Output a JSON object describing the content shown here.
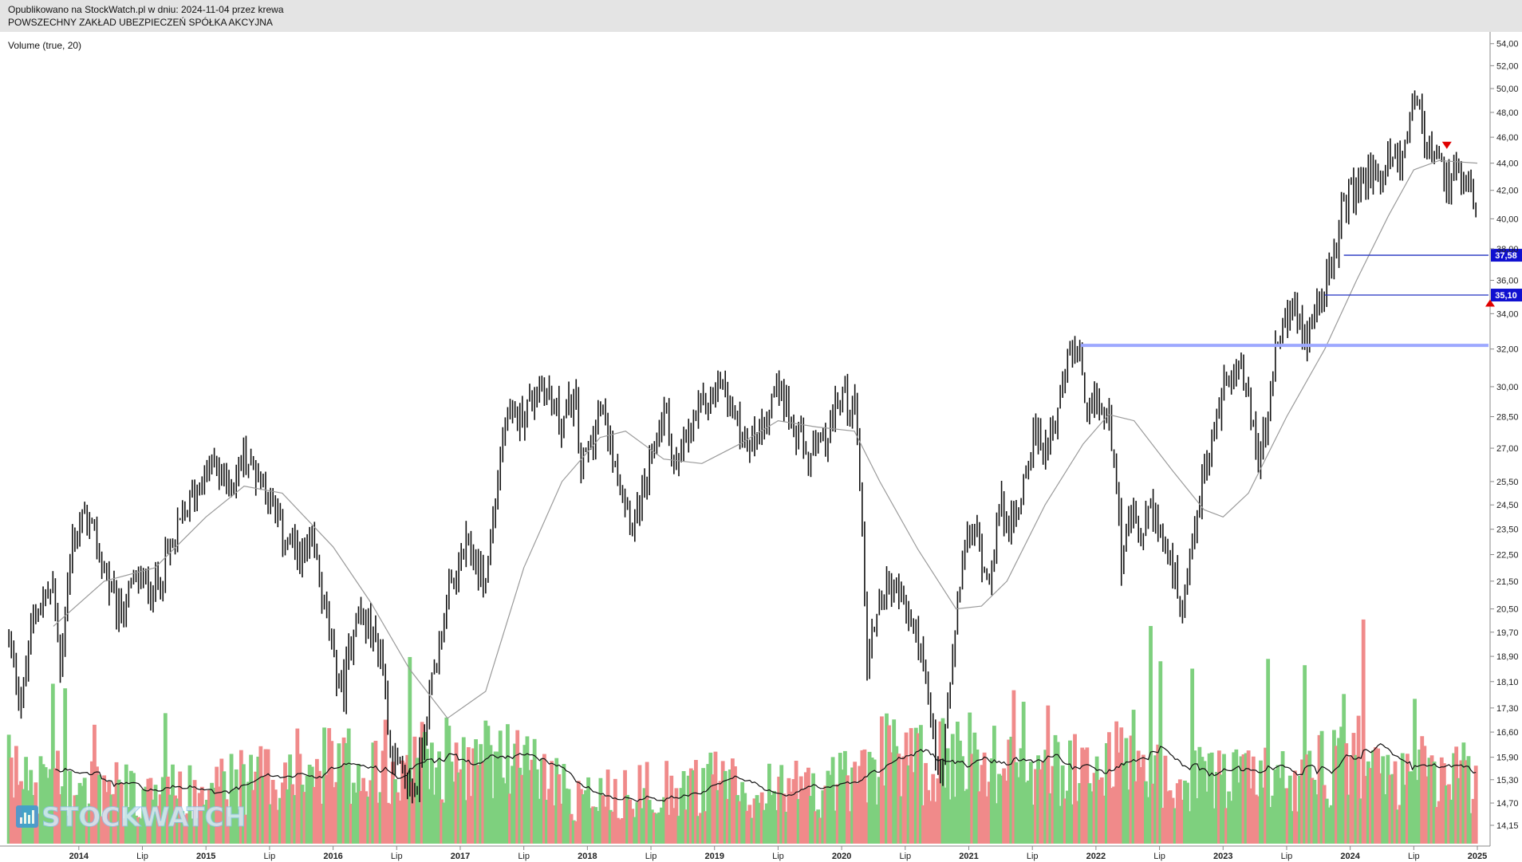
{
  "header": {
    "published": "Opublikowano na StockWatch.pl w dniu: 2024-11-04 przez krewa",
    "company": "POWSZECHNY ZAKŁAD UBEZPIECZEŃ SPÓŁKA AKCYJNA"
  },
  "indicator_label": "Volume (true, 20)",
  "watermark": "STOCKWATCH",
  "chart_data": {
    "type": "candlestick",
    "title": "POWSZECHNY ZAKŁAD UBEZPIECZEŃ SPÓŁKA AKCYJNA",
    "x_range": [
      "2013-06",
      "2024-11"
    ],
    "x_ticks": [
      {
        "t": 2014.0,
        "label": "2014"
      },
      {
        "t": 2014.5,
        "label": "Lip"
      },
      {
        "t": 2015.0,
        "label": "2015"
      },
      {
        "t": 2015.5,
        "label": "Lip"
      },
      {
        "t": 2016.0,
        "label": "2016"
      },
      {
        "t": 2016.5,
        "label": "Lip"
      },
      {
        "t": 2017.0,
        "label": "2017"
      },
      {
        "t": 2017.5,
        "label": "Lip"
      },
      {
        "t": 2018.0,
        "label": "2018"
      },
      {
        "t": 2018.5,
        "label": "Lip"
      },
      {
        "t": 2019.0,
        "label": "2019"
      },
      {
        "t": 2019.5,
        "label": "Lip"
      },
      {
        "t": 2020.0,
        "label": "2020"
      },
      {
        "t": 2020.5,
        "label": "Lip"
      },
      {
        "t": 2021.0,
        "label": "2021"
      },
      {
        "t": 2021.5,
        "label": "Lip"
      },
      {
        "t": 2022.0,
        "label": "2022"
      },
      {
        "t": 2022.5,
        "label": "Lip"
      },
      {
        "t": 2023.0,
        "label": "2023"
      },
      {
        "t": 2023.5,
        "label": "Lip"
      },
      {
        "t": 2024.0,
        "label": "2024"
      },
      {
        "t": 2024.5,
        "label": "Lip"
      },
      {
        "t": 2025.0,
        "label": "2025"
      }
    ],
    "y_ticks": [
      "54,00",
      "52,00",
      "50,00",
      "48,00",
      "46,00",
      "44,00",
      "42,00",
      "40,00",
      "38,00",
      "36,00",
      "34,00",
      "32,00",
      "30,00",
      "28,50",
      "27,00",
      "25,50",
      "24,50",
      "23,50",
      "22,50",
      "21,50",
      "20,50",
      "19,70",
      "18,90",
      "18,10",
      "17,30",
      "16,60",
      "15,90",
      "15,30",
      "14,70",
      "14,15"
    ],
    "y_scale": "log",
    "y_range": [
      13.9,
      54.5
    ],
    "price_path": [
      [
        2013.45,
        19.5
      ],
      [
        2013.55,
        17.4
      ],
      [
        2013.65,
        20.5
      ],
      [
        2013.8,
        21.2
      ],
      [
        2013.85,
        18.5
      ],
      [
        2013.95,
        23.0
      ],
      [
        2014.05,
        24.0
      ],
      [
        2014.2,
        22.0
      ],
      [
        2014.3,
        20.2
      ],
      [
        2014.45,
        21.5
      ],
      [
        2014.6,
        21.3
      ],
      [
        2014.75,
        23.0
      ],
      [
        2014.9,
        25.0
      ],
      [
        2015.05,
        26.2
      ],
      [
        2015.2,
        25.3
      ],
      [
        2015.3,
        26.6
      ],
      [
        2015.45,
        25.6
      ],
      [
        2015.6,
        23.3
      ],
      [
        2015.75,
        22.3
      ],
      [
        2015.85,
        22.8
      ],
      [
        2016.0,
        18.7
      ],
      [
        2016.08,
        17.8
      ],
      [
        2016.18,
        20.5
      ],
      [
        2016.28,
        19.8
      ],
      [
        2016.38,
        19.0
      ],
      [
        2016.45,
        16.2
      ],
      [
        2016.55,
        15.2
      ],
      [
        2016.65,
        15.0
      ],
      [
        2016.72,
        16.8
      ],
      [
        2016.8,
        18.6
      ],
      [
        2016.9,
        20.8
      ],
      [
        2017.05,
        22.8
      ],
      [
        2017.2,
        21.5
      ],
      [
        2017.35,
        28.0
      ],
      [
        2017.5,
        28.8
      ],
      [
        2017.65,
        30.2
      ],
      [
        2017.8,
        28.2
      ],
      [
        2017.9,
        29.5
      ],
      [
        2017.95,
        26.0
      ],
      [
        2018.1,
        28.8
      ],
      [
        2018.2,
        27.0
      ],
      [
        2018.35,
        23.8
      ],
      [
        2018.45,
        25.0
      ],
      [
        2018.6,
        29.0
      ],
      [
        2018.7,
        26.0
      ],
      [
        2018.85,
        28.5
      ],
      [
        2019.05,
        30.2
      ],
      [
        2019.2,
        27.8
      ],
      [
        2019.3,
        27.3
      ],
      [
        2019.4,
        28.5
      ],
      [
        2019.52,
        30.5
      ],
      [
        2019.6,
        28.0
      ],
      [
        2019.75,
        26.5
      ],
      [
        2019.88,
        27.3
      ],
      [
        2020.0,
        29.8
      ],
      [
        2020.12,
        28.5
      ],
      [
        2020.15,
        24.8
      ],
      [
        2020.2,
        18.6
      ],
      [
        2020.3,
        21.0
      ],
      [
        2020.4,
        21.5
      ],
      [
        2020.5,
        20.5
      ],
      [
        2020.6,
        19.5
      ],
      [
        2020.72,
        16.4
      ],
      [
        2020.78,
        15.0
      ],
      [
        2020.82,
        16.8
      ],
      [
        2020.87,
        18.5
      ],
      [
        2020.95,
        22.5
      ],
      [
        2021.05,
        23.5
      ],
      [
        2021.15,
        21.5
      ],
      [
        2021.25,
        24.5
      ],
      [
        2021.35,
        23.5
      ],
      [
        2021.5,
        27.5
      ],
      [
        2021.6,
        27.0
      ],
      [
        2021.72,
        29.5
      ],
      [
        2021.82,
        32.3
      ],
      [
        2021.88,
        31.0
      ],
      [
        2021.92,
        28.0
      ],
      [
        2022.0,
        29.5
      ],
      [
        2022.08,
        28.5
      ],
      [
        2022.15,
        27.0
      ],
      [
        2022.2,
        22.3
      ],
      [
        2022.28,
        24.0
      ],
      [
        2022.35,
        23.2
      ],
      [
        2022.45,
        24.5
      ],
      [
        2022.52,
        23.0
      ],
      [
        2022.62,
        21.5
      ],
      [
        2022.68,
        19.9
      ],
      [
        2022.75,
        22.5
      ],
      [
        2022.82,
        25.0
      ],
      [
        2022.92,
        27.5
      ],
      [
        2023.0,
        30.0
      ],
      [
        2023.1,
        31.5
      ],
      [
        2023.2,
        29.5
      ],
      [
        2023.28,
        26.2
      ],
      [
        2023.35,
        28.5
      ],
      [
        2023.42,
        32.0
      ],
      [
        2023.52,
        34.5
      ],
      [
        2023.6,
        33.3
      ],
      [
        2023.65,
        32.5
      ],
      [
        2023.72,
        34.5
      ],
      [
        2023.8,
        35.5
      ],
      [
        2023.88,
        37.2
      ],
      [
        2023.95,
        41.5
      ],
      [
        2024.05,
        42.0
      ],
      [
        2024.15,
        43.3
      ],
      [
        2024.25,
        43.0
      ],
      [
        2024.33,
        45.0
      ],
      [
        2024.4,
        43.8
      ],
      [
        2024.45,
        46.5
      ],
      [
        2024.52,
        50.3
      ],
      [
        2024.58,
        45.5
      ],
      [
        2024.65,
        44.5
      ],
      [
        2024.72,
        43.5
      ],
      [
        2024.78,
        42.0
      ],
      [
        2024.83,
        44.0
      ],
      [
        2024.88,
        41.5
      ],
      [
        2024.95,
        42.0
      ],
      [
        2025.0,
        40.0
      ]
    ],
    "moving_average": [
      [
        2013.8,
        19.9
      ],
      [
        2014.2,
        21.5
      ],
      [
        2014.6,
        22.0
      ],
      [
        2015.0,
        24.0
      ],
      [
        2015.3,
        25.3
      ],
      [
        2015.6,
        25.0
      ],
      [
        2016.0,
        22.8
      ],
      [
        2016.3,
        20.7
      ],
      [
        2016.6,
        18.5
      ],
      [
        2016.9,
        17.0
      ],
      [
        2017.2,
        17.8
      ],
      [
        2017.5,
        22.0
      ],
      [
        2017.8,
        25.5
      ],
      [
        2018.1,
        27.5
      ],
      [
        2018.3,
        27.8
      ],
      [
        2018.6,
        26.5
      ],
      [
        2018.9,
        26.3
      ],
      [
        2019.2,
        27.2
      ],
      [
        2019.5,
        28.3
      ],
      [
        2019.8,
        28.0
      ],
      [
        2020.1,
        27.8
      ],
      [
        2020.3,
        25.5
      ],
      [
        2020.6,
        22.7
      ],
      [
        2020.9,
        20.5
      ],
      [
        2021.1,
        20.6
      ],
      [
        2021.3,
        21.5
      ],
      [
        2021.6,
        24.5
      ],
      [
        2021.9,
        27.2
      ],
      [
        2022.1,
        28.6
      ],
      [
        2022.3,
        28.3
      ],
      [
        2022.6,
        26.0
      ],
      [
        2022.85,
        24.3
      ],
      [
        2023.0,
        24.0
      ],
      [
        2023.2,
        25.0
      ],
      [
        2023.5,
        28.5
      ],
      [
        2023.8,
        32.0
      ],
      [
        2024.05,
        36.0
      ],
      [
        2024.3,
        40.2
      ],
      [
        2024.5,
        43.5
      ],
      [
        2024.7,
        44.2
      ],
      [
        2025.0,
        44.0
      ]
    ],
    "volume_scale": [
      0,
      1.0
    ],
    "volume_profile": [
      [
        2013.45,
        0.26
      ],
      [
        2014.0,
        0.22
      ],
      [
        2014.6,
        0.18
      ],
      [
        2015.2,
        0.22
      ],
      [
        2015.7,
        0.28
      ],
      [
        2016.2,
        0.3
      ],
      [
        2016.6,
        0.34
      ],
      [
        2016.9,
        0.3
      ],
      [
        2017.4,
        0.32
      ],
      [
        2017.9,
        0.18
      ],
      [
        2018.5,
        0.2
      ],
      [
        2019.0,
        0.22
      ],
      [
        2019.6,
        0.2
      ],
      [
        2020.0,
        0.22
      ],
      [
        2020.3,
        0.32
      ],
      [
        2020.7,
        0.28
      ],
      [
        2021.0,
        0.34
      ],
      [
        2021.5,
        0.26
      ],
      [
        2022.0,
        0.28
      ],
      [
        2022.2,
        0.36
      ],
      [
        2022.6,
        0.22
      ],
      [
        2023.0,
        0.24
      ],
      [
        2023.5,
        0.24
      ],
      [
        2024.0,
        0.32
      ],
      [
        2024.5,
        0.26
      ],
      [
        2025.0,
        0.24
      ]
    ],
    "volume_colors": {
      "up": "#7ed07e",
      "down": "#f08a8a"
    },
    "volume_ma_color": "#111111",
    "price_color": "#111111",
    "ma_color": "#9a9a9a",
    "horizontal_lines": [
      {
        "value": 37.58,
        "label": "37,58",
        "from": 2023.95,
        "color": "#2030c0"
      },
      {
        "value": 35.1,
        "label": "35,10",
        "from": 2023.8,
        "color": "#2030c0"
      },
      {
        "value": 32.2,
        "label": "",
        "from": 2021.88,
        "color": "#9da8ff"
      }
    ],
    "markers": [
      {
        "t": 2024.76,
        "value": 45.4,
        "shape": "triangle-down",
        "color": "#e00000"
      },
      {
        "t": 2025.1,
        "value": 34.6,
        "shape": "triangle-up",
        "color": "#e00000"
      }
    ],
    "label_bg_color": "#1010d0"
  }
}
